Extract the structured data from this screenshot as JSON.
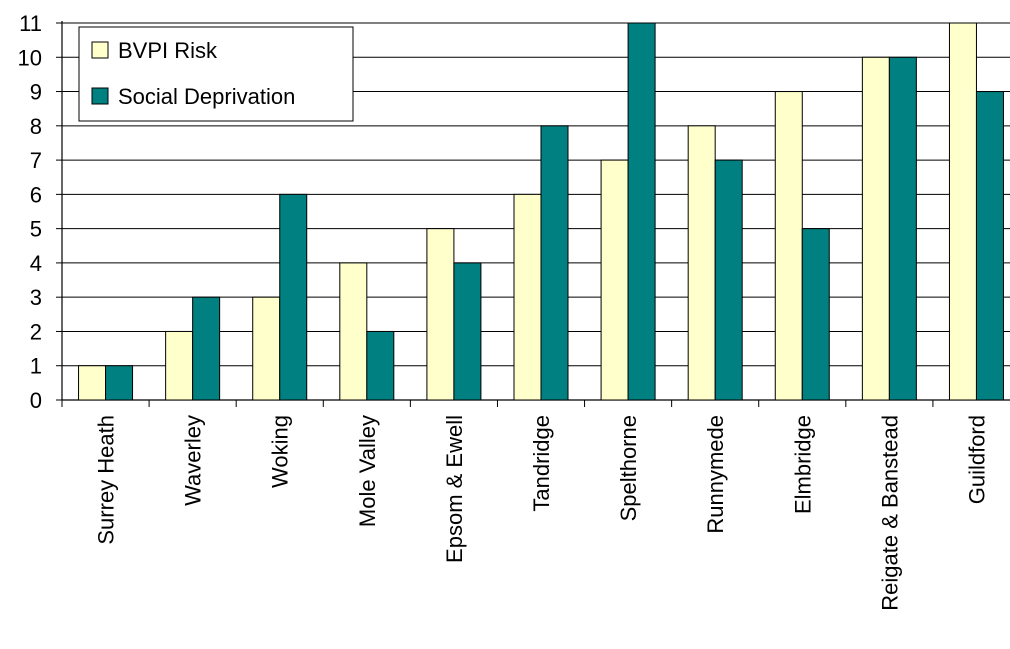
{
  "chart_data": {
    "type": "bar",
    "title": "",
    "xlabel": "",
    "ylabel": "",
    "categories": [
      "Surrey Heath",
      "Waverley",
      "Woking",
      "Mole Valley",
      "Epsom & Ewell",
      "Tandridge",
      "Spelthorne",
      "Runnymede",
      "Elmbridge",
      "Reigate & Banstead",
      "Guildford"
    ],
    "series": [
      {
        "name": "BVPI Risk",
        "values": [
          1,
          2,
          3,
          4,
          5,
          6,
          7,
          8,
          9,
          10,
          11
        ],
        "color": "#FFFFCC"
      },
      {
        "name": "Social Deprivation",
        "values": [
          1,
          3,
          6,
          2,
          4,
          8,
          11,
          7,
          5,
          10,
          9
        ],
        "color": "#008080"
      }
    ],
    "ylim": [
      0,
      11
    ],
    "yticks": [
      0,
      1,
      2,
      3,
      4,
      5,
      6,
      7,
      8,
      9,
      10,
      11
    ],
    "grid": true,
    "legend_position": "top-left"
  }
}
